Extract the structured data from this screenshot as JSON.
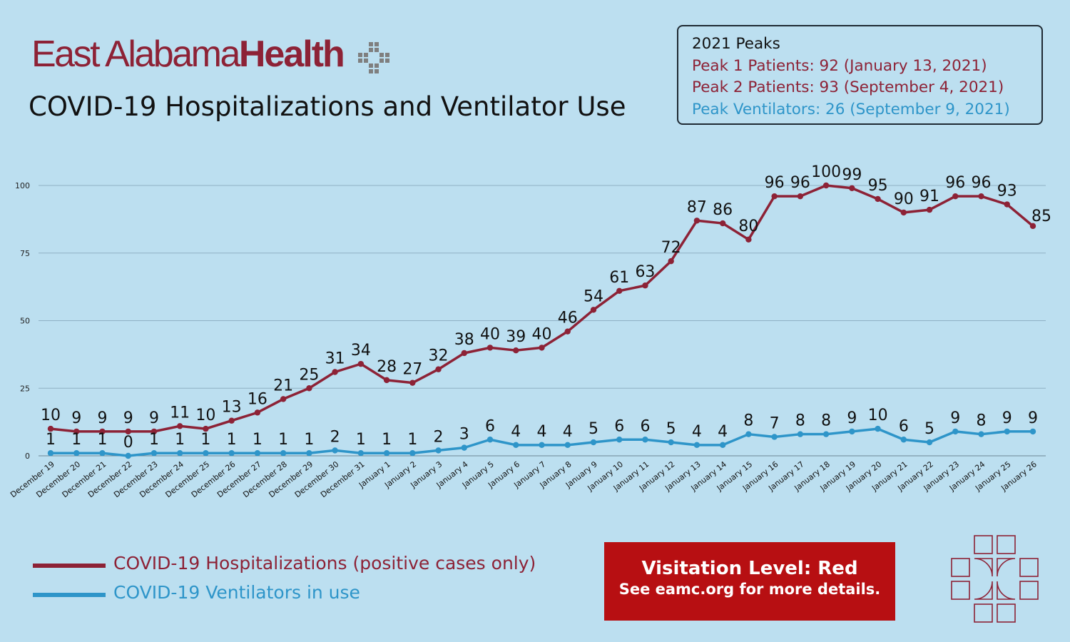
{
  "brand": {
    "light": "East Alabama",
    "bold": "Health"
  },
  "title": "COVID-19 Hospitalizations and Ventilator Use",
  "peaks": {
    "title": "2021 Peaks",
    "peak1": "Peak 1 Patients: 92 (January 13, 2021)",
    "peak2": "Peak 2 Patients: 93 (September 4, 2021)",
    "peak_vent": "Peak Ventilators: 26 (September 9, 2021)"
  },
  "visitation": {
    "line1": "Visitation Level: Red",
    "line2": "See eamc.org for more details."
  },
  "colors": {
    "hospitalizations": "#8d2236",
    "ventilators": "#2e95c9",
    "background": "#bcdff0",
    "visitation": "#b70f12"
  },
  "chart_data": {
    "type": "line",
    "title": "COVID-19 Hospitalizations and Ventilator Use",
    "xlabel": "",
    "ylabel": "",
    "ylim": [
      0,
      100
    ],
    "yticks": [
      0,
      25,
      50,
      75,
      100
    ],
    "grid": true,
    "legend_position": "bottom-left",
    "categories": [
      "December 19",
      "December 20",
      "December 21",
      "December 22",
      "December 23",
      "December 24",
      "December 25",
      "December 26",
      "December 27",
      "December 28",
      "December 29",
      "December 30",
      "December 31",
      "January 1",
      "January 2",
      "January 3",
      "January 4",
      "January 5",
      "January 6",
      "January 7",
      "January 8",
      "January 9",
      "January 10",
      "January 11",
      "January 12",
      "January 13",
      "January 14",
      "January 15",
      "January 16",
      "January 17",
      "January 18",
      "January 19",
      "January 20",
      "January 21",
      "January 22",
      "January 23",
      "January 24",
      "January 25",
      "January 26"
    ],
    "series": [
      {
        "name": "COVID-19 Hospitalizations (positive cases only)",
        "color": "#8d2236",
        "values": [
          10,
          9,
          9,
          9,
          9,
          11,
          10,
          13,
          16,
          21,
          25,
          31,
          34,
          28,
          27,
          32,
          38,
          40,
          39,
          40,
          46,
          54,
          61,
          63,
          72,
          87,
          86,
          80,
          96,
          96,
          100,
          99,
          95,
          90,
          91,
          96,
          96,
          93,
          85
        ]
      },
      {
        "name": "COVID-19 Ventilators in use",
        "color": "#2e95c9",
        "values": [
          1,
          1,
          1,
          0,
          1,
          1,
          1,
          1,
          1,
          1,
          1,
          2,
          1,
          1,
          1,
          2,
          3,
          6,
          4,
          4,
          4,
          5,
          6,
          6,
          5,
          4,
          4,
          8,
          7,
          8,
          8,
          9,
          10,
          6,
          5,
          9,
          8,
          9,
          9
        ]
      }
    ]
  }
}
